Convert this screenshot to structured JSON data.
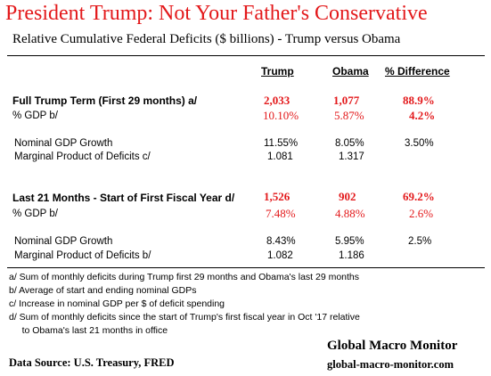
{
  "title": "President Trump: Not Your Father's Conservative",
  "subtitle": "Relative Cumulative Federal Deficits ($ billions) -  Trump versus Obama",
  "columns": {
    "trump": "Trump",
    "obama": "Obama",
    "diff": "% Difference"
  },
  "section1": {
    "label": "Full Trump Term  (First 29 months)  a/",
    "trump": "2,033",
    "obama": "1,077",
    "diff": "88.9%",
    "gdp_label": " % GDP  b/",
    "gdp_trump": "10.10%",
    "gdp_obama": "5.87%",
    "gdp_diff": "4.2%",
    "growth_label": "Nominal GDP Growth",
    "growth_trump": "11.55%",
    "growth_obama": "8.05%",
    "growth_diff": "3.50%",
    "mp_label": "Marginal Product of Deficits c/",
    "mp_trump": "1.081",
    "mp_obama": "1.317"
  },
  "section2": {
    "label": "Last 21 Months - Start of First Fiscal Year   d/",
    "trump": "1,526",
    "obama": "902",
    "diff": "69.2%",
    "gdp_label": " % GDP  b/",
    "gdp_trump": "7.48%",
    "gdp_obama": "4.88%",
    "gdp_diff": "2.6%",
    "growth_label": "Nominal GDP Growth",
    "growth_trump": "8.43%",
    "growth_obama": "5.95%",
    "growth_diff": "2.5%",
    "mp_label": "Marginal Product of Deficits b/",
    "mp_trump": "1.082",
    "mp_obama": "1.186"
  },
  "notes": [
    "a/ Sum of monthly deficits during Trump first 29 months and Obama's last 29 months",
    "b/  Average of start and ending nominal GDPs",
    "c/ Increase in nominal GDP per $ of deficit spending",
    "d/ Sum of monthly deficits since the start of Trump's first fiscal year in Oct '17 relative",
    "     to Obama's last 21 months in office"
  ],
  "brand": "Global Macro Monitor",
  "brand_url": "global-macro-monitor.com",
  "source": "Data Source:  U.S. Treasury,  FRED",
  "colors": {
    "accent": "#e3191b"
  }
}
